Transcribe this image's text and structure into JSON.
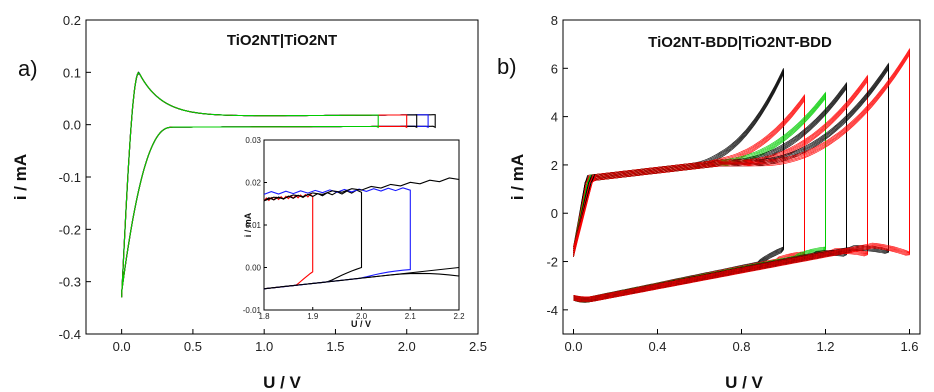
{
  "chart_data": [
    {
      "panel_label": "a)",
      "title": "TiO2NT|TiO2NT",
      "type": "line",
      "xlabel": "U / V",
      "ylabel": "i / mA",
      "xlim": [
        -0.25,
        2.5
      ],
      "ylim": [
        -0.4,
        0.2
      ],
      "xticks": [
        0.0,
        0.5,
        1.0,
        1.5,
        2.0,
        2.5
      ],
      "yticks": [
        -0.4,
        -0.3,
        -0.2,
        -0.1,
        0.0,
        0.1,
        0.2
      ],
      "xtick_labels": [
        "0.0",
        "0.5",
        "1.0",
        "1.5",
        "2.0",
        "2.5"
      ],
      "ytick_labels": [
        "-0.4",
        "-0.3",
        "-0.2",
        "-0.1",
        "0.0",
        "0.1",
        "0.2"
      ],
      "series": [
        {
          "color": "#000000",
          "vertex": 2.2
        },
        {
          "color": "#1a1aff",
          "vertex": 2.15
        },
        {
          "color": "#000000",
          "vertex": 2.07
        },
        {
          "color": "#ff0000",
          "vertex": 2.0
        },
        {
          "color": "#00cc00",
          "vertex": 1.8
        }
      ],
      "cycle_shape": {
        "start": [
          0.0,
          -0.33
        ],
        "anodic_peak": [
          0.12,
          0.1
        ],
        "plateau_current": 0.015,
        "return_current": -0.005,
        "cathodic_end": [
          0.0,
          -0.32
        ]
      },
      "inset": {
        "xlabel": "U / V",
        "ylabel": "i / mA",
        "xlim": [
          1.8,
          2.2
        ],
        "ylim": [
          -0.01,
          0.03
        ],
        "xticks": [
          1.8,
          1.9,
          2.0,
          2.1,
          2.2
        ],
        "yticks": [
          -0.01,
          0.0,
          0.01,
          0.02,
          0.03
        ],
        "xtick_labels": [
          "1.8",
          "1.9",
          "2.0",
          "2.1",
          "2.2"
        ],
        "ytick_labels": [
          "-0.01",
          "0.00",
          "0.01",
          "0.02",
          "0.03"
        ],
        "series": [
          {
            "color": "#ff0000",
            "vertex": 1.9,
            "forward_start": 0.016,
            "forward_end": 0.017,
            "reverse_start": -0.001
          },
          {
            "color": "#000000",
            "vertex": 2.0,
            "forward_start": 0.016,
            "forward_end": 0.018,
            "reverse_start": 0.0
          },
          {
            "color": "#1a1aff",
            "vertex": 2.1,
            "forward_start": 0.0175,
            "forward_end": 0.0185,
            "reverse_start": -0.0005
          },
          {
            "color": "#000000",
            "vertex": 2.2,
            "forward_start": 0.016,
            "forward_end": 0.021,
            "reverse_start": -0.002
          }
        ],
        "baseline": {
          "x_start": 1.8,
          "x_end": 2.2,
          "y_start": -0.005,
          "y_end": 0.0
        }
      }
    },
    {
      "panel_label": "b)",
      "title": "TiO2NT-BDD|TiO2NT-BDD",
      "type": "line",
      "xlabel": "U / V",
      "ylabel": "i / mA",
      "xlim": [
        -0.05,
        1.65
      ],
      "ylim": [
        -5,
        8
      ],
      "xticks": [
        0.0,
        0.4,
        0.8,
        1.2,
        1.6
      ],
      "yticks": [
        -4,
        -2,
        0,
        2,
        4,
        6,
        8
      ],
      "xtick_labels": [
        "0.0",
        "0.4",
        "0.8",
        "1.2",
        "1.6"
      ],
      "ytick_labels": [
        "-4",
        "-2",
        "0",
        "2",
        "4",
        "6",
        "8"
      ],
      "series": [
        {
          "color": "#000000",
          "vertex": 1.0,
          "top": 6.0,
          "bottom": -1.4
        },
        {
          "color": "#ff0000",
          "vertex": 1.1,
          "top": 4.9,
          "bottom": -1.6
        },
        {
          "color": "#00cc00",
          "vertex": 1.2,
          "top": 5.0,
          "bottom": -1.4
        },
        {
          "color": "#000000",
          "vertex": 1.3,
          "top": 5.4,
          "bottom": -1.6
        },
        {
          "color": "#ff0000",
          "vertex": 1.4,
          "top": 5.7,
          "bottom": -1.6
        },
        {
          "color": "#000000",
          "vertex": 1.5,
          "top": 6.2,
          "bottom": -1.5
        },
        {
          "color": "#ff0000",
          "vertex": 1.6,
          "top": 6.8,
          "bottom": -1.6
        }
      ],
      "cycle_shape": {
        "forward_start": 1.5,
        "forward_mid": 2.2,
        "reverse_start": -2.5,
        "reverse_mid": -2.6,
        "cathodic_min": -3.4
      }
    }
  ]
}
